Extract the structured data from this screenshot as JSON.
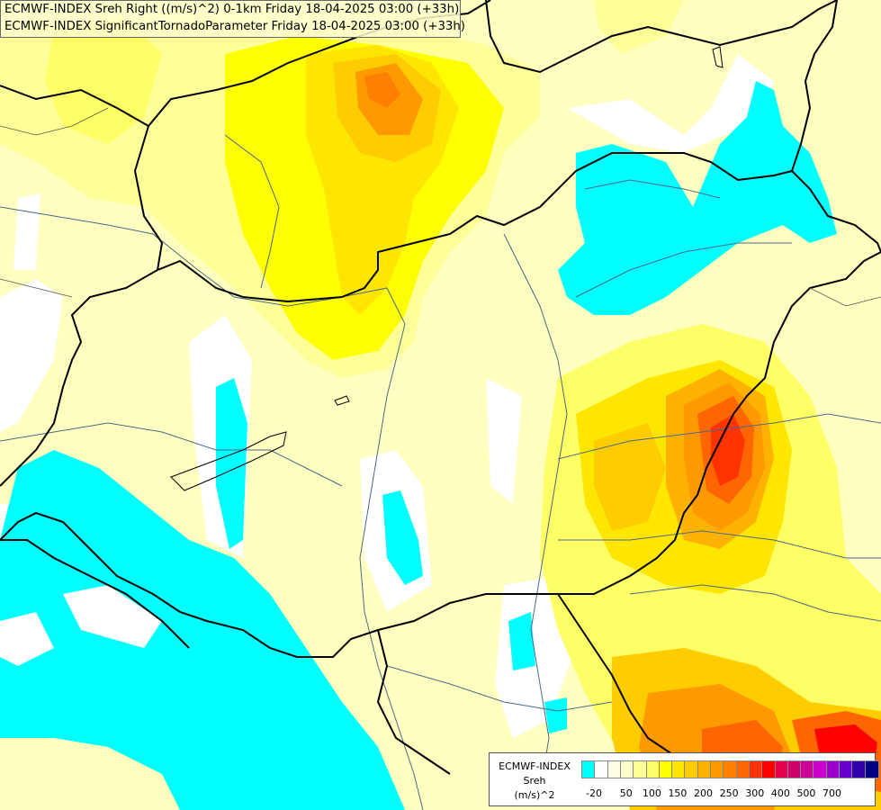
{
  "header": {
    "line1": "ECMWF-INDEX Sreh Right ((m/s)^2) 0-1km Friday 18-04-2025 03:00 (+33h)",
    "line2": "ECMWF-INDEX SignificantTornadoParameter Friday 18-04-2025 03:00 (+33h)"
  },
  "legend": {
    "model": "ECMWF-INDEX",
    "parameter": "Sreh",
    "unit": "(m/s)^2",
    "colors": [
      "#00ffff",
      "#ffffff",
      "#ffffe6",
      "#ffffcc",
      "#ffff99",
      "#ffff66",
      "#ffff00",
      "#ffe600",
      "#ffcc00",
      "#ffb300",
      "#ff9900",
      "#ff8000",
      "#ff6600",
      "#ff3300",
      "#ff0000",
      "#e6004c",
      "#cc0066",
      "#cc0099",
      "#cc00cc",
      "#9900cc",
      "#6600cc",
      "#3300aa",
      "#000080"
    ],
    "ticks": [
      "-20",
      "50",
      "100",
      "150",
      "200",
      "250",
      "300",
      "400",
      "500",
      "700"
    ]
  },
  "colors": {
    "cyan": "#00ffff",
    "pale_yellow": "#ffffc0",
    "light_yellow": "#ffff99",
    "yellow": "#ffff00",
    "gold": "#ffcc00",
    "orange": "#ff9900",
    "dark_orange": "#ff6600",
    "red": "#ff2200",
    "border": "#000000",
    "river": "#4a6a8a"
  }
}
